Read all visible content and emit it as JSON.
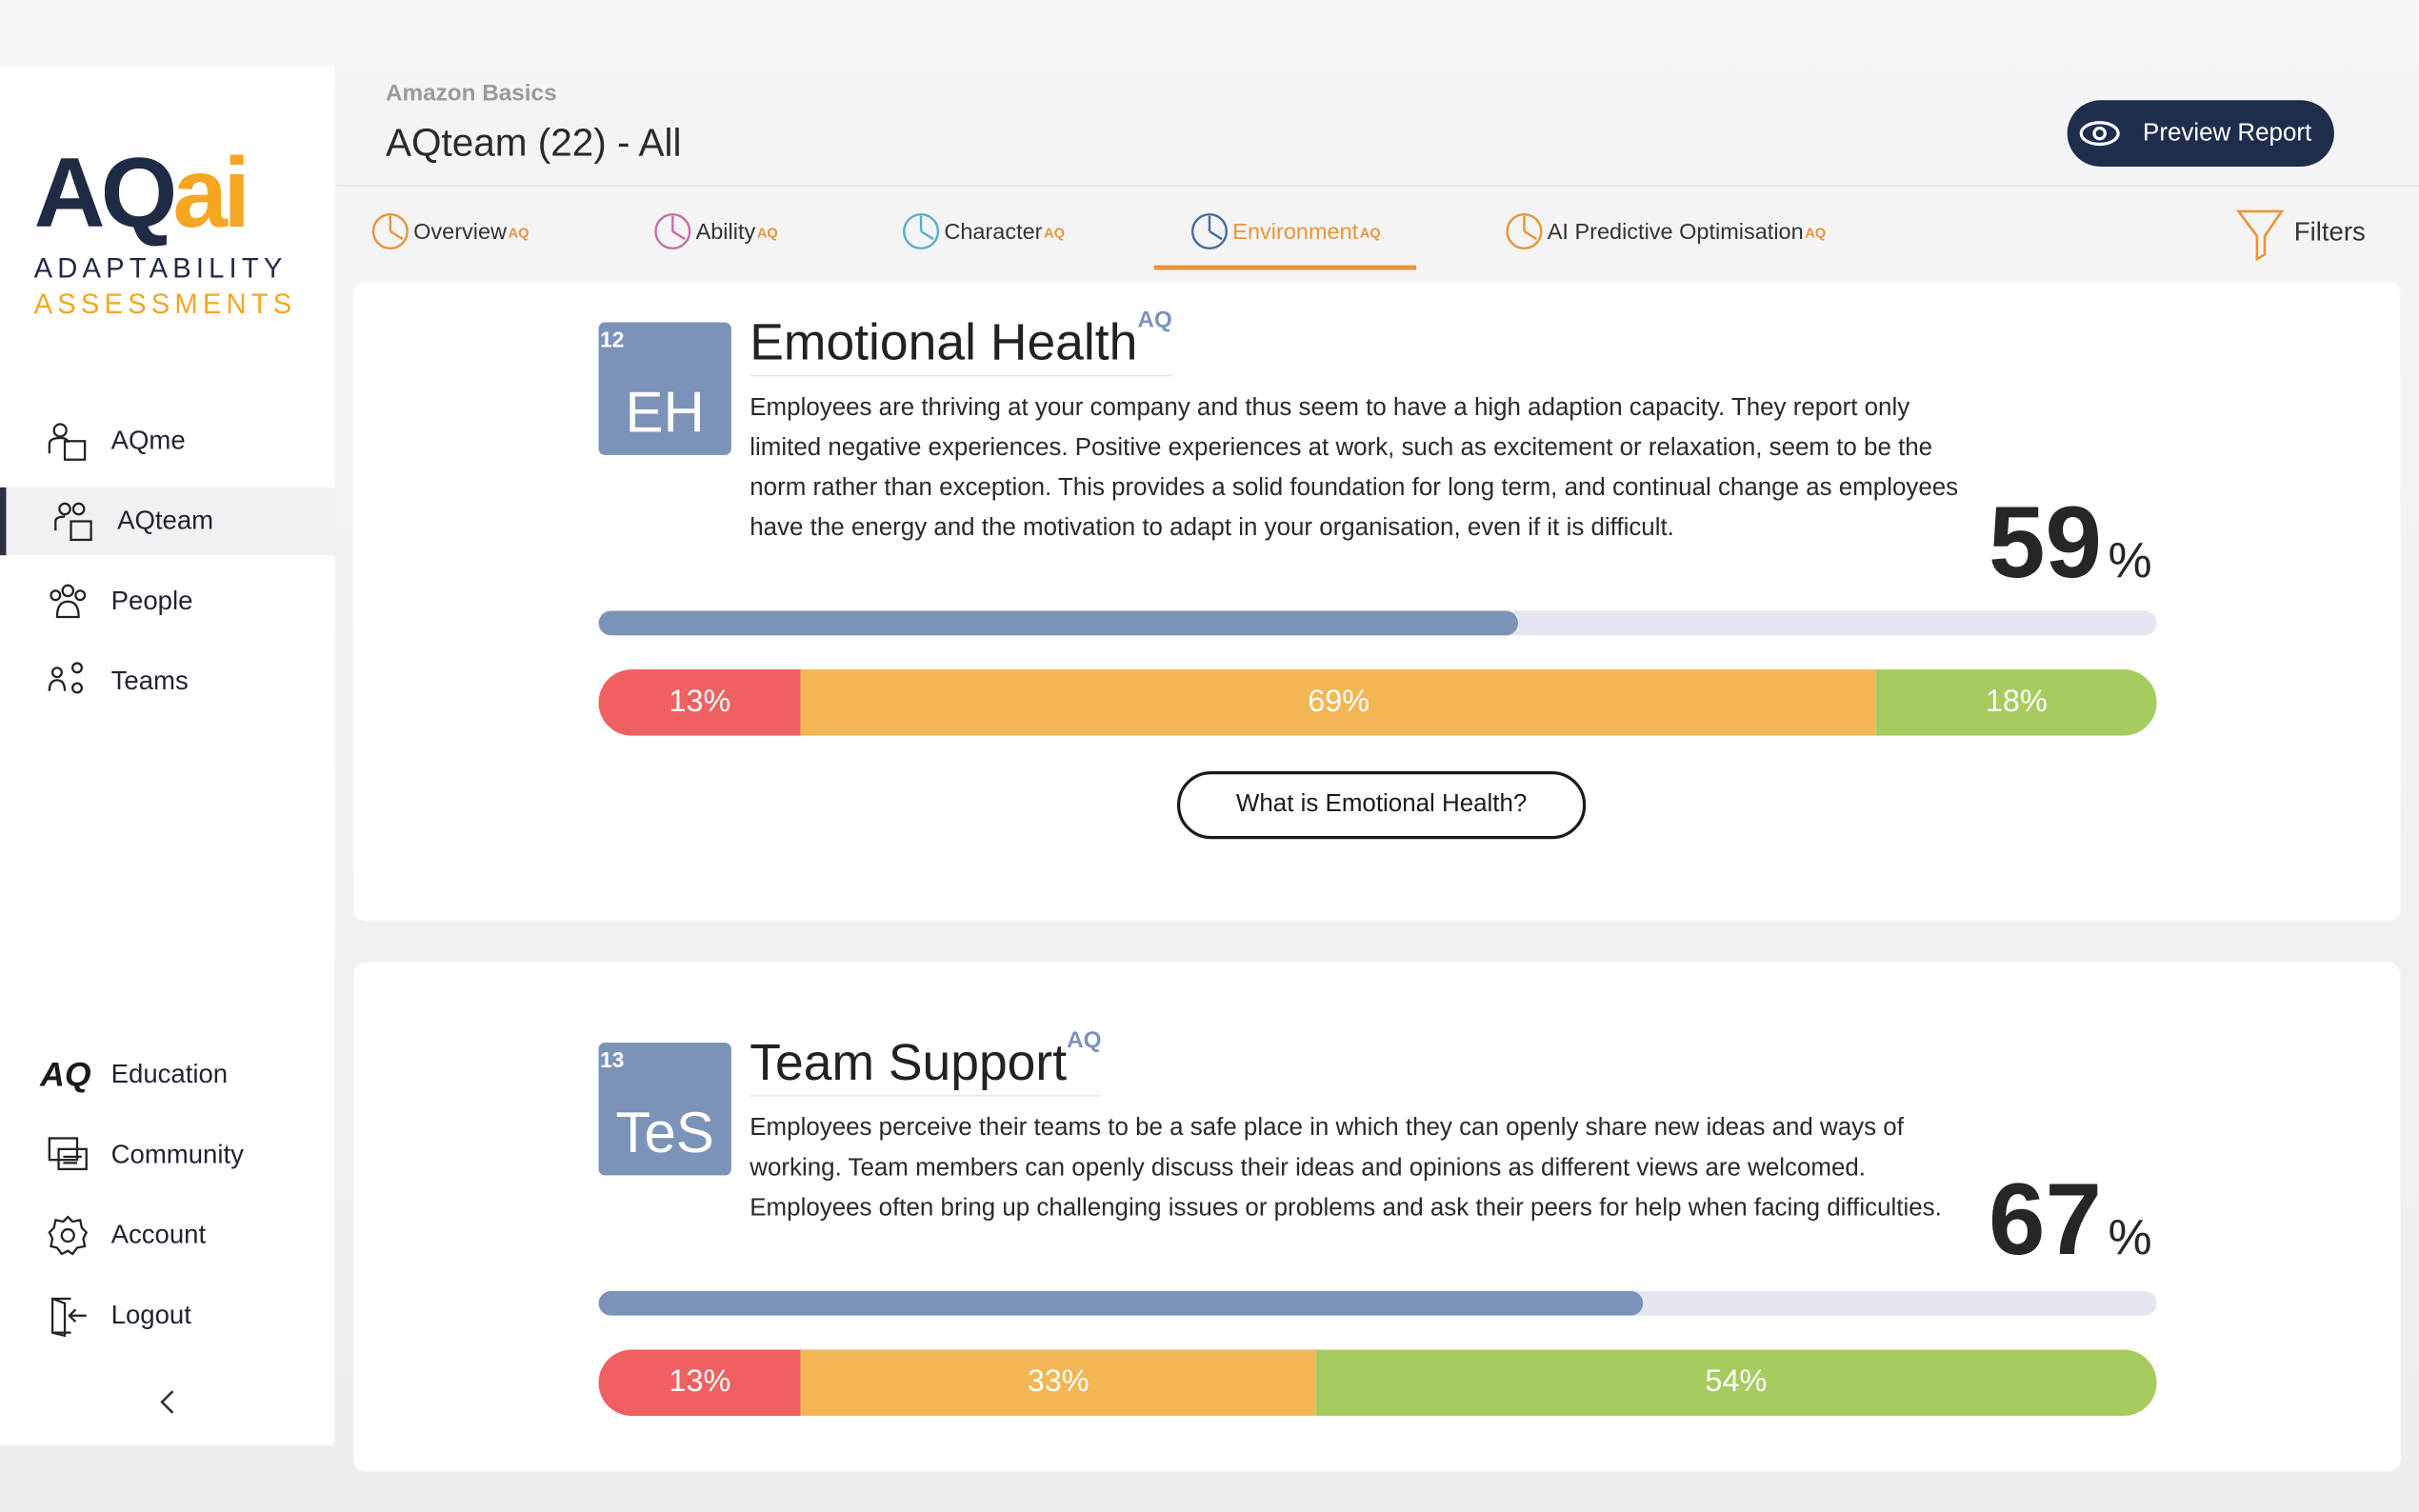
{
  "logo": {
    "mark_dark": "AQ",
    "mark_accent": "ai",
    "line1": "ADAPTABILITY",
    "line2": "ASSESSMENTS"
  },
  "nav": [
    "AQme",
    "AQteam",
    "People",
    "Teams"
  ],
  "nav_active": 1,
  "bottom_nav": [
    "Education",
    "Community",
    "Account",
    "Logout"
  ],
  "education_icon": "AQ",
  "header": {
    "org": "Amazon Basics",
    "title": "AQteam (22) - All",
    "preview_button": "Preview Report"
  },
  "tabs": [
    {
      "label": "Overview",
      "sup": "AQ"
    },
    {
      "label": "Ability",
      "sup": "AQ"
    },
    {
      "label": "Character",
      "sup": "AQ"
    },
    {
      "label": "Environment",
      "sup": "AQ"
    },
    {
      "label": "AI Predictive Optimisation",
      "sup": "AQ"
    }
  ],
  "tab_active": 3,
  "filters": "Filters",
  "sections": [
    {
      "badge_number": 12,
      "badge_code": "EH",
      "title": "Emotional Health",
      "title_sup": "AQ",
      "description": "Employees are thriving at your company and thus seem to have a high adaption capacity. They report only limited negative experiences. Positive experiences at work, such as excitement or relaxation, seem to be the norm rather than exception. This provides a solid foundation for long term, and continual change as employees have the energy and the motivation to adapt in your organisation, even if it is difficult.",
      "score": 59,
      "score_unit": "%",
      "distribution": {
        "values": [
          13,
          69,
          18
        ],
        "value_labels": [
          "13%",
          "69%",
          "18%"
        ]
      },
      "button": "What is Emotional Health?"
    },
    {
      "badge_number": 13,
      "badge_code": "TeS",
      "title": "Team Support",
      "title_sup": "AQ",
      "description": "Employees perceive their teams to be a safe place in which they can openly share new ideas and ways of working. Team members can openly discuss their ideas and opinions as different views are welcomed. Employees often bring up challenging issues or problems and ask their peers for help when facing difficulties.",
      "score": 67,
      "score_unit": "%",
      "distribution": {
        "values": [
          13,
          33,
          54
        ],
        "value_labels": [
          "13%",
          "33%",
          "54%"
        ]
      }
    }
  ]
}
